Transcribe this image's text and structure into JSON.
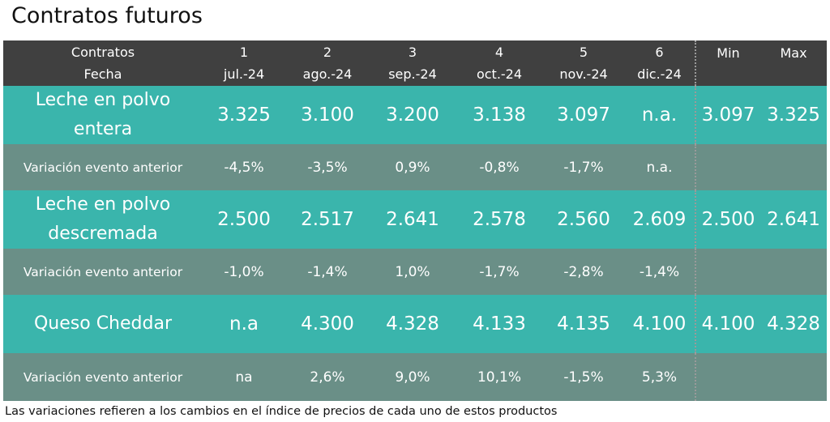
{
  "title": "Contratos futuros",
  "header": {
    "row1_label": "Contratos",
    "row2_label": "Fecha",
    "contracts": [
      "1",
      "2",
      "3",
      "4",
      "5",
      "6"
    ],
    "dates": [
      "jul.-24",
      "ago.-24",
      "sep.-24",
      "oct.-24",
      "nov.-24",
      "dic.-24"
    ],
    "min_label": "Min",
    "max_label": "Max"
  },
  "rows": [
    {
      "label_line1": "Leche en polvo",
      "label_line2": "entera",
      "values": [
        "3.325",
        "3.100",
        "3.200",
        "3.138",
        "3.097",
        "n.a."
      ],
      "min": "3.097",
      "max": "3.325",
      "variation_label": "Variación evento anterior",
      "variations": [
        "-4,5%",
        "-3,5%",
        "0,9%",
        "-0,8%",
        "-1,7%",
        "n.a."
      ]
    },
    {
      "label_line1": "Leche en polvo",
      "label_line2": "descremada",
      "values": [
        "2.500",
        "2.517",
        "2.641",
        "2.578",
        "2.560",
        "2.609"
      ],
      "min": "2.500",
      "max": "2.641",
      "variation_label": "Variación evento anterior",
      "variations": [
        "-1,0%",
        "-1,4%",
        "1,0%",
        "-1,7%",
        "-2,8%",
        "-1,4%"
      ]
    },
    {
      "label_line1": "Queso Cheddar",
      "label_line2": "",
      "values": [
        "n.a",
        "4.300",
        "4.328",
        "4.133",
        "4.135",
        "4.100"
      ],
      "min": "4.100",
      "max": "4.328",
      "variation_label": "Variación evento anterior",
      "variations": [
        "na",
        "2,6%",
        "9,0%",
        "10,1%",
        "-1,5%",
        "5,3%"
      ]
    }
  ],
  "footnote": "Las variaciones refieren a los cambios en el índice de precios de cada uno de estos productos",
  "colors": {
    "header_bg": "#404040",
    "product_row_bg": "#3ab5ac",
    "variation_row_bg": "#6a8f87",
    "text_on_rows": "#ffffff"
  }
}
